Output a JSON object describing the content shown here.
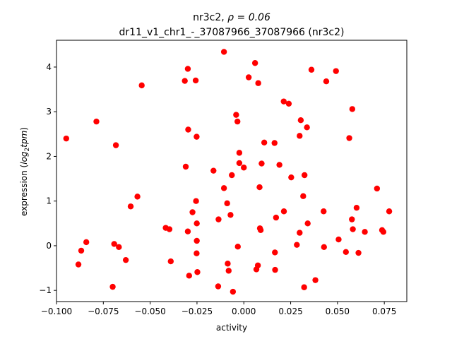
{
  "chart_data": {
    "type": "scatter",
    "title": "nr3c2, ",
    "title_rho": "ρ = 0.06",
    "subtitle": "dr11_v1_chr1_-_37087966_37087966 (nr3c2)",
    "xlabel": "activity",
    "ylabel_prefix": "expression (",
    "ylabel_math": "log",
    "ylabel_sub": "2",
    "ylabel_tpm": "tpm",
    "ylabel_suffix": ")",
    "xlim": [
      -0.1,
      0.087
    ],
    "ylim": [
      -1.25,
      4.6
    ],
    "xticks": [
      -0.1,
      -0.075,
      -0.05,
      -0.025,
      0.0,
      0.025,
      0.05,
      0.075
    ],
    "xtick_labels": [
      "−0.100",
      "−0.075",
      "−0.050",
      "−0.025",
      "0.000",
      "0.025",
      "0.050",
      "0.075"
    ],
    "yticks": [
      -1,
      0,
      1,
      2,
      3,
      4
    ],
    "ytick_labels": [
      "−1",
      "0",
      "1",
      "2",
      "3",
      "4"
    ],
    "marker_color": "#ff0000",
    "points": [
      {
        "x": -0.0948,
        "y": 2.4
      },
      {
        "x": -0.0883,
        "y": -0.42
      },
      {
        "x": -0.0868,
        "y": -0.11
      },
      {
        "x": -0.0841,
        "y": 0.08
      },
      {
        "x": -0.0787,
        "y": 2.78
      },
      {
        "x": -0.0692,
        "y": 0.04
      },
      {
        "x": -0.07,
        "y": -0.92
      },
      {
        "x": -0.0683,
        "y": 2.25
      },
      {
        "x": -0.0667,
        "y": -0.03
      },
      {
        "x": -0.063,
        "y": -0.32
      },
      {
        "x": -0.0604,
        "y": 0.88
      },
      {
        "x": -0.0568,
        "y": 1.1
      },
      {
        "x": -0.0545,
        "y": 3.59
      },
      {
        "x": -0.0417,
        "y": 0.4
      },
      {
        "x": -0.0397,
        "y": 0.37
      },
      {
        "x": -0.039,
        "y": -0.35
      },
      {
        "x": -0.0315,
        "y": 3.69
      },
      {
        "x": -0.031,
        "y": 1.77
      },
      {
        "x": -0.0299,
        "y": 3.96
      },
      {
        "x": -0.0297,
        "y": 2.6
      },
      {
        "x": -0.0299,
        "y": 0.32
      },
      {
        "x": -0.0292,
        "y": -0.67
      },
      {
        "x": -0.0274,
        "y": 0.75
      },
      {
        "x": -0.0257,
        "y": 3.7
      },
      {
        "x": -0.0252,
        "y": 2.44
      },
      {
        "x": -0.0255,
        "y": 1.0
      },
      {
        "x": -0.0251,
        "y": 0.5
      },
      {
        "x": -0.0251,
        "y": 0.11
      },
      {
        "x": -0.0252,
        "y": -0.17
      },
      {
        "x": -0.0248,
        "y": -0.59
      },
      {
        "x": -0.0162,
        "y": 1.68
      },
      {
        "x": -0.0135,
        "y": 0.59
      },
      {
        "x": -0.0137,
        "y": -0.91
      },
      {
        "x": -0.0106,
        "y": 4.34
      },
      {
        "x": -0.0106,
        "y": 1.29
      },
      {
        "x": -0.0089,
        "y": 0.95
      },
      {
        "x": -0.0086,
        "y": -0.4
      },
      {
        "x": -0.0081,
        "y": -0.56
      },
      {
        "x": -0.0071,
        "y": 0.69
      },
      {
        "x": -0.0064,
        "y": 1.58
      },
      {
        "x": -0.0058,
        "y": -1.03
      },
      {
        "x": -0.0041,
        "y": 2.93
      },
      {
        "x": -0.0034,
        "y": 2.78
      },
      {
        "x": -0.0032,
        "y": -0.02
      },
      {
        "x": -0.0024,
        "y": 2.08
      },
      {
        "x": -0.0024,
        "y": 1.85
      },
      {
        "x": 0.0,
        "y": 1.75
      },
      {
        "x": 0.0026,
        "y": 3.77
      },
      {
        "x": 0.006,
        "y": 4.09
      },
      {
        "x": 0.0067,
        "y": -0.53
      },
      {
        "x": 0.0075,
        "y": -0.44
      },
      {
        "x": 0.0077,
        "y": 3.64
      },
      {
        "x": 0.0084,
        "y": 1.31
      },
      {
        "x": 0.0086,
        "y": 0.39
      },
      {
        "x": 0.009,
        "y": 0.35
      },
      {
        "x": 0.0095,
        "y": 1.84
      },
      {
        "x": 0.0109,
        "y": 2.31
      },
      {
        "x": 0.0164,
        "y": 2.3
      },
      {
        "x": 0.0166,
        "y": -0.15
      },
      {
        "x": 0.0167,
        "y": -0.54
      },
      {
        "x": 0.0172,
        "y": 0.63
      },
      {
        "x": 0.019,
        "y": 1.81
      },
      {
        "x": 0.0213,
        "y": 3.23
      },
      {
        "x": 0.0214,
        "y": 0.77
      },
      {
        "x": 0.024,
        "y": 3.18
      },
      {
        "x": 0.0253,
        "y": 1.53
      },
      {
        "x": 0.0283,
        "y": 0.02
      },
      {
        "x": 0.0298,
        "y": 2.46
      },
      {
        "x": 0.0298,
        "y": 0.29
      },
      {
        "x": 0.0304,
        "y": 2.81
      },
      {
        "x": 0.0317,
        "y": 1.11
      },
      {
        "x": 0.0324,
        "y": 1.58
      },
      {
        "x": 0.0322,
        "y": -0.93
      },
      {
        "x": 0.0337,
        "y": 2.65
      },
      {
        "x": 0.0341,
        "y": 0.5
      },
      {
        "x": 0.0361,
        "y": 3.94
      },
      {
        "x": 0.0382,
        "y": -0.77
      },
      {
        "x": 0.0426,
        "y": 0.77
      },
      {
        "x": 0.0428,
        "y": -0.03
      },
      {
        "x": 0.044,
        "y": 3.68
      },
      {
        "x": 0.0492,
        "y": 3.91
      },
      {
        "x": 0.0506,
        "y": 0.14
      },
      {
        "x": 0.0545,
        "y": -0.14
      },
      {
        "x": 0.0563,
        "y": 2.41
      },
      {
        "x": 0.0579,
        "y": 3.06
      },
      {
        "x": 0.0577,
        "y": 0.59
      },
      {
        "x": 0.0582,
        "y": 0.37
      },
      {
        "x": 0.0602,
        "y": 0.85
      },
      {
        "x": 0.0612,
        "y": -0.16
      },
      {
        "x": 0.0646,
        "y": 0.31
      },
      {
        "x": 0.0711,
        "y": 1.28
      },
      {
        "x": 0.0738,
        "y": 0.35
      },
      {
        "x": 0.0745,
        "y": 0.31
      },
      {
        "x": 0.0776,
        "y": 0.77
      }
    ]
  }
}
